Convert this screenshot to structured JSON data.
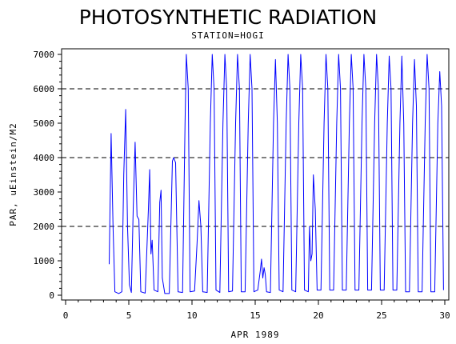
{
  "chart_data": {
    "type": "line",
    "title": "PHOTOSYNTHETIC RADIATION",
    "subtitle": "STATION=HOGI",
    "xlabel": "APR 1989",
    "ylabel": "PAR, uEinstein/M2",
    "xlim": [
      0,
      30
    ],
    "ylim": [
      0,
      7000
    ],
    "x_ticks": [
      "0",
      "5",
      "10",
      "15",
      "20",
      "25",
      "30"
    ],
    "y_ticks": [
      "0",
      "1000",
      "2000",
      "3000",
      "4000",
      "5000",
      "6000",
      "7000"
    ],
    "grid": "dashed horizontal at 2000, 4000, 6000",
    "series": [
      {
        "color": "#0000ff",
        "points": [
          [
            3.45,
            900
          ],
          [
            3.6,
            4700
          ],
          [
            3.75,
            2000
          ],
          [
            3.9,
            100
          ],
          [
            4.2,
            50
          ],
          [
            4.45,
            100
          ],
          [
            4.6,
            3500
          ],
          [
            4.75,
            5400
          ],
          [
            4.9,
            2000
          ],
          [
            5.05,
            300
          ],
          [
            5.2,
            80
          ],
          [
            5.35,
            2500
          ],
          [
            5.5,
            4450
          ],
          [
            5.65,
            2300
          ],
          [
            5.8,
            2200
          ],
          [
            5.95,
            100
          ],
          [
            6.3,
            60
          ],
          [
            6.55,
            2500
          ],
          [
            6.65,
            3650
          ],
          [
            6.75,
            1200
          ],
          [
            6.85,
            1600
          ],
          [
            7.0,
            150
          ],
          [
            7.3,
            100
          ],
          [
            7.45,
            2700
          ],
          [
            7.55,
            3050
          ],
          [
            7.65,
            500
          ],
          [
            7.85,
            50
          ],
          [
            8.2,
            50
          ],
          [
            8.45,
            3900
          ],
          [
            8.55,
            4000
          ],
          [
            8.7,
            3850
          ],
          [
            8.8,
            2000
          ],
          [
            8.9,
            100
          ],
          [
            9.25,
            80
          ],
          [
            9.45,
            5000
          ],
          [
            9.55,
            7000
          ],
          [
            9.7,
            6000
          ],
          [
            9.85,
            100
          ],
          [
            10.2,
            120
          ],
          [
            10.4,
            1500
          ],
          [
            10.55,
            2750
          ],
          [
            10.7,
            2000
          ],
          [
            10.85,
            100
          ],
          [
            11.2,
            80
          ],
          [
            11.45,
            5000
          ],
          [
            11.6,
            7000
          ],
          [
            11.75,
            6000
          ],
          [
            11.9,
            150
          ],
          [
            12.2,
            80
          ],
          [
            12.45,
            5000
          ],
          [
            12.6,
            7000
          ],
          [
            12.75,
            6000
          ],
          [
            12.9,
            100
          ],
          [
            13.2,
            120
          ],
          [
            13.45,
            5000
          ],
          [
            13.6,
            7000
          ],
          [
            13.75,
            6000
          ],
          [
            13.9,
            100
          ],
          [
            14.2,
            100
          ],
          [
            14.45,
            5000
          ],
          [
            14.6,
            7000
          ],
          [
            14.75,
            6000
          ],
          [
            14.9,
            100
          ],
          [
            15.2,
            150
          ],
          [
            15.4,
            700
          ],
          [
            15.5,
            1050
          ],
          [
            15.6,
            500
          ],
          [
            15.7,
            800
          ],
          [
            15.8,
            600
          ],
          [
            15.9,
            100
          ],
          [
            16.2,
            80
          ],
          [
            16.45,
            5000
          ],
          [
            16.6,
            6850
          ],
          [
            16.75,
            5000
          ],
          [
            16.9,
            150
          ],
          [
            17.2,
            100
          ],
          [
            17.45,
            5000
          ],
          [
            17.6,
            7000
          ],
          [
            17.75,
            6000
          ],
          [
            17.9,
            150
          ],
          [
            18.2,
            100
          ],
          [
            18.45,
            5000
          ],
          [
            18.6,
            7000
          ],
          [
            18.75,
            6000
          ],
          [
            18.9,
            150
          ],
          [
            19.2,
            100
          ],
          [
            19.3,
            2000
          ],
          [
            19.4,
            1000
          ],
          [
            19.5,
            1200
          ],
          [
            19.6,
            3500
          ],
          [
            19.75,
            2500
          ],
          [
            19.9,
            150
          ],
          [
            20.2,
            150
          ],
          [
            20.45,
            5000
          ],
          [
            20.6,
            7000
          ],
          [
            20.75,
            6000
          ],
          [
            20.9,
            150
          ],
          [
            21.2,
            150
          ],
          [
            21.45,
            5000
          ],
          [
            21.6,
            7000
          ],
          [
            21.75,
            6000
          ],
          [
            21.9,
            150
          ],
          [
            22.2,
            150
          ],
          [
            22.45,
            5000
          ],
          [
            22.6,
            7000
          ],
          [
            22.75,
            6000
          ],
          [
            22.9,
            150
          ],
          [
            23.2,
            150
          ],
          [
            23.45,
            5000
          ],
          [
            23.6,
            7000
          ],
          [
            23.75,
            6000
          ],
          [
            23.9,
            150
          ],
          [
            24.2,
            150
          ],
          [
            24.45,
            5000
          ],
          [
            24.6,
            7000
          ],
          [
            24.75,
            6000
          ],
          [
            24.9,
            150
          ],
          [
            25.2,
            150
          ],
          [
            25.45,
            5000
          ],
          [
            25.6,
            6950
          ],
          [
            25.75,
            6000
          ],
          [
            25.9,
            150
          ],
          [
            26.2,
            150
          ],
          [
            26.45,
            5000
          ],
          [
            26.6,
            6950
          ],
          [
            26.75,
            5000
          ],
          [
            26.9,
            100
          ],
          [
            27.2,
            100
          ],
          [
            27.45,
            5000
          ],
          [
            27.6,
            6850
          ],
          [
            27.75,
            5500
          ],
          [
            27.9,
            100
          ],
          [
            28.2,
            100
          ],
          [
            28.45,
            5000
          ],
          [
            28.6,
            7000
          ],
          [
            28.75,
            6000
          ],
          [
            28.9,
            100
          ],
          [
            29.2,
            100
          ],
          [
            29.45,
            5000
          ],
          [
            29.6,
            6500
          ],
          [
            29.75,
            5500
          ],
          [
            29.9,
            150
          ]
        ]
      }
    ]
  }
}
